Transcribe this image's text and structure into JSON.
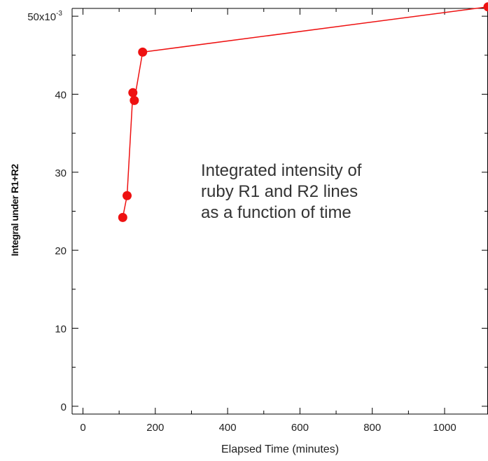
{
  "chart_data": {
    "type": "line",
    "title": "",
    "xlabel": "Elapsed Time (minutes)",
    "ylabel": "Integral under R1+R2",
    "xlim": [
      -30,
      1120
    ],
    "ylim": [
      -0.001,
      0.051
    ],
    "x_ticks": [
      {
        "value": 0,
        "label": "0"
      },
      {
        "value": 200,
        "label": "200"
      },
      {
        "value": 400,
        "label": "400"
      },
      {
        "value": 600,
        "label": "600"
      },
      {
        "value": 800,
        "label": "800"
      },
      {
        "value": 1000,
        "label": "1000"
      }
    ],
    "y_ticks": [
      {
        "value": 0,
        "label": "0"
      },
      {
        "value": 0.01,
        "label": "10"
      },
      {
        "value": 0.02,
        "label": "20"
      },
      {
        "value": 0.03,
        "label": "30"
      },
      {
        "value": 0.04,
        "label": "40"
      },
      {
        "value": 0.05,
        "label": "50x10",
        "sup": "-3"
      }
    ],
    "annotation": [
      "Integrated intensity of",
      "ruby R1 and R2 lines",
      "as a function of time"
    ],
    "series": [
      {
        "color": "#ee1111",
        "x": [
          110,
          122,
          138,
          142,
          165,
          1120
        ],
        "y": [
          0.0242,
          0.027,
          0.0402,
          0.0392,
          0.0454,
          0.0512
        ]
      }
    ],
    "grid": false,
    "legend": "none"
  }
}
